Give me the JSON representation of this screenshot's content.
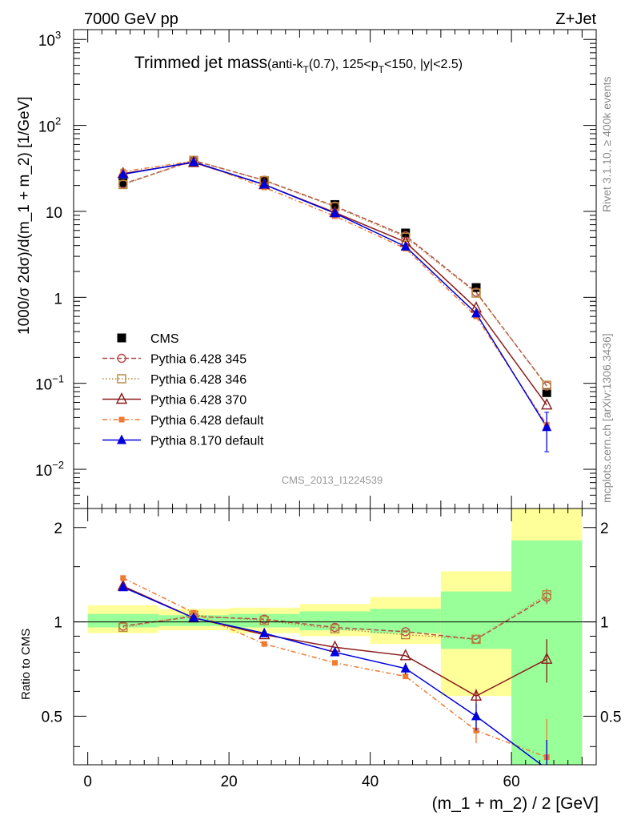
{
  "header": {
    "left": "7000 GeV pp",
    "right": "Z+Jet"
  },
  "side": {
    "rivet": "Rivet 3.1.10, ≥ 400k events",
    "mcplots": "mcplots.cern.ch [arXiv:1306.3436]"
  },
  "watermark": "CMS_2013_I1224539",
  "title": {
    "main": "Trimmed jet mass",
    "sub_a": "(anti-k",
    "sub_b": "T",
    "sub_c": "(0.7), 125<p",
    "sub_d": "T",
    "sub_e": "<150, |y|<2.5)"
  },
  "ylabel_top": "1000/σ 2dσ)/d(m_1 + m_2) [1/GeV]",
  "ylabel_bottom": "Ratio to CMS",
  "xlabel": "(m_1 + m_2) / 2 [GeV]",
  "x_ticks": [
    {
      "value": 0,
      "label": "0"
    },
    {
      "value": 20,
      "label": "20"
    },
    {
      "value": 40,
      "label": "40"
    },
    {
      "value": 60,
      "label": "60"
    }
  ],
  "y_ticks_top": [
    {
      "value": 0.01,
      "base": "10",
      "exp": "−2"
    },
    {
      "value": 0.1,
      "base": "10",
      "exp": "−1"
    },
    {
      "value": 1,
      "base": "1",
      "exp": ""
    },
    {
      "value": 10,
      "base": "10",
      "exp": ""
    },
    {
      "value": 100,
      "base": "10",
      "exp": "2"
    },
    {
      "value": 1000,
      "base": "10",
      "exp": "3"
    }
  ],
  "y_ticks_bottom": [
    {
      "value": 0.5,
      "label": "0.5"
    },
    {
      "value": 1,
      "label": "1"
    },
    {
      "value": 2,
      "label": "2"
    }
  ],
  "chart_data": {
    "type": "line",
    "x_range": [
      -2,
      72
    ],
    "top_ylim": [
      0.0035,
      1300
    ],
    "top_log": true,
    "bottom_ylim": [
      0.35,
      2.3
    ],
    "bottom_log": true,
    "bins": [
      [
        0,
        10
      ],
      [
        10,
        20
      ],
      [
        20,
        30
      ],
      [
        30,
        40
      ],
      [
        40,
        50
      ],
      [
        50,
        60
      ],
      [
        60,
        70
      ]
    ],
    "x": [
      5,
      15,
      25,
      35,
      45,
      55,
      65
    ],
    "data": {
      "name": "CMS",
      "values": [
        21.5,
        37.5,
        22.5,
        12.0,
        5.6,
        1.3,
        0.078
      ]
    },
    "band_yellow": [
      [
        0.92,
        1.13
      ],
      [
        0.94,
        1.1
      ],
      [
        0.92,
        1.11
      ],
      [
        0.9,
        1.14
      ],
      [
        0.85,
        1.2
      ],
      [
        0.58,
        1.45
      ],
      [
        0.3,
        2.4
      ]
    ],
    "band_green": [
      [
        0.96,
        1.06
      ],
      [
        0.97,
        1.05
      ],
      [
        0.96,
        1.06
      ],
      [
        0.94,
        1.08
      ],
      [
        0.92,
        1.1
      ],
      [
        0.82,
        1.25
      ],
      [
        0.3,
        1.82
      ]
    ],
    "series": [
      {
        "name": "Pythia 6.428 345",
        "color": "#b34d4d",
        "dash": "6,3",
        "marker": "circle-open",
        "values": [
          20.8,
          39.0,
          23.0,
          11.5,
          5.2,
          1.15,
          0.093
        ],
        "ratio": [
          0.97,
          1.04,
          1.02,
          0.96,
          0.93,
          0.88,
          1.2
        ],
        "ratio_err": [
          null,
          null,
          null,
          null,
          null,
          null,
          0.06
        ]
      },
      {
        "name": "Pythia 6.428 346",
        "color": "#b8863b",
        "dash": "1.5,2.5",
        "marker": "square-open",
        "values": [
          20.5,
          39.2,
          22.8,
          11.3,
          5.0,
          1.12,
          0.095
        ],
        "ratio": [
          0.96,
          1.05,
          1.01,
          0.95,
          0.91,
          0.88,
          1.22
        ],
        "ratio_err": [
          null,
          null,
          null,
          null,
          null,
          null,
          0.06
        ]
      },
      {
        "name": "Pythia 6.428 370",
        "color": "#8b1a1a",
        "dash": "",
        "marker": "triangle-open",
        "values": [
          27.5,
          37.0,
          20.5,
          9.7,
          4.4,
          0.75,
          0.056
        ],
        "ratio": [
          1.3,
          1.03,
          0.91,
          0.83,
          0.78,
          0.58,
          0.76
        ],
        "ratio_err": [
          null,
          null,
          null,
          null,
          null,
          0.03,
          0.12
        ]
      },
      {
        "name": "Pythia 6.428 default",
        "color": "#f07a30",
        "dash": "6,3,1.5,3",
        "marker": "square-filled",
        "values": [
          29.0,
          38.5,
          19.0,
          8.8,
          3.7,
          0.6,
          0.033
        ],
        "ratio": [
          1.38,
          1.07,
          0.85,
          0.74,
          0.67,
          0.45,
          0.37
        ],
        "ratio_err": [
          null,
          null,
          null,
          null,
          null,
          0.04,
          0.12
        ]
      },
      {
        "name": "Pythia 8.170 default",
        "color": "#0000dd",
        "dash": "",
        "marker": "triangle-filled",
        "values": [
          27.0,
          37.5,
          20.5,
          9.5,
          3.9,
          0.65,
          0.031
        ],
        "ratio": [
          1.29,
          1.03,
          0.92,
          0.8,
          0.71,
          0.5,
          0.34
        ],
        "ratio_err": [
          null,
          null,
          null,
          null,
          0.03,
          0.05,
          0.08
        ],
        "err_top": [
          null,
          null,
          null,
          null,
          null,
          null,
          0.015
        ]
      }
    ]
  }
}
